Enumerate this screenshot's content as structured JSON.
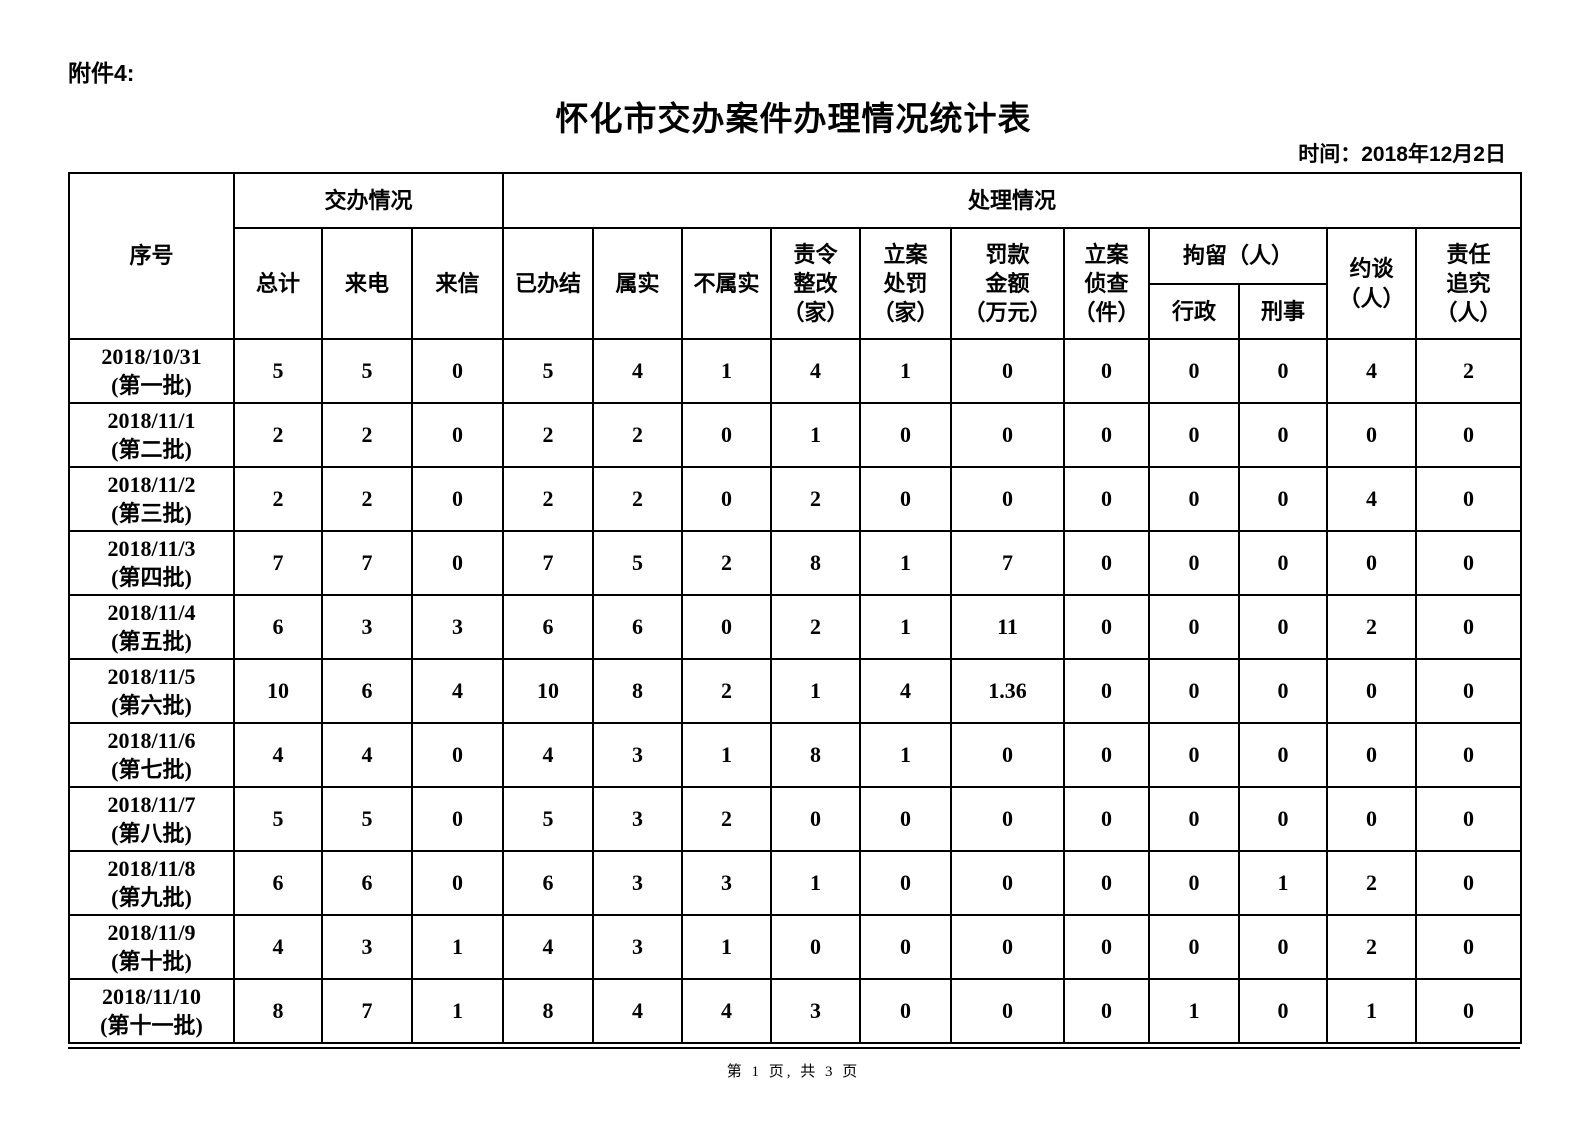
{
  "page": {
    "attachment_label": "附件4:",
    "title": "怀化市交办案件办理情况统计表",
    "date_label": "时间：2018年12月2日",
    "footer": "第 1 页, 共 3 页"
  },
  "table": {
    "header": {
      "serial": "序号",
      "group_assign": "交办情况",
      "group_handle": "处理情况",
      "col_total": "总计",
      "col_calls": "来电",
      "col_letters": "来信",
      "col_completed": "已办结",
      "col_verified": "属实",
      "col_unverified": "不属实",
      "col_rectify": "责令\n整改\n（家）",
      "col_punish": "立案\n处罚\n（家）",
      "col_fine": "罚款\n金额\n（万元）",
      "col_investigate": "立案\n侦查\n（件）",
      "col_detain": "拘留（人）",
      "col_admin": "行政",
      "col_criminal": "刑事",
      "col_interview": "约谈\n（人）",
      "col_accountability": "责任\n追究\n（人）"
    },
    "rows": [
      {
        "label": "2018/10/31\n(第一批)",
        "values": [
          "5",
          "5",
          "0",
          "5",
          "4",
          "1",
          "4",
          "1",
          "0",
          "0",
          "0",
          "0",
          "4",
          "2"
        ]
      },
      {
        "label": "2018/11/1\n(第二批)",
        "values": [
          "2",
          "2",
          "0",
          "2",
          "2",
          "0",
          "1",
          "0",
          "0",
          "0",
          "0",
          "0",
          "0",
          "0"
        ]
      },
      {
        "label": "2018/11/2\n(第三批)",
        "values": [
          "2",
          "2",
          "0",
          "2",
          "2",
          "0",
          "2",
          "0",
          "0",
          "0",
          "0",
          "0",
          "4",
          "0"
        ]
      },
      {
        "label": "2018/11/3\n(第四批)",
        "values": [
          "7",
          "7",
          "0",
          "7",
          "5",
          "2",
          "8",
          "1",
          "7",
          "0",
          "0",
          "0",
          "0",
          "0"
        ]
      },
      {
        "label": "2018/11/4\n(第五批)",
        "values": [
          "6",
          "3",
          "3",
          "6",
          "6",
          "0",
          "2",
          "1",
          "11",
          "0",
          "0",
          "0",
          "2",
          "0"
        ]
      },
      {
        "label": "2018/11/5\n(第六批)",
        "values": [
          "10",
          "6",
          "4",
          "10",
          "8",
          "2",
          "1",
          "4",
          "1.36",
          "0",
          "0",
          "0",
          "0",
          "0"
        ]
      },
      {
        "label": "2018/11/6\n(第七批)",
        "values": [
          "4",
          "4",
          "0",
          "4",
          "3",
          "1",
          "8",
          "1",
          "0",
          "0",
          "0",
          "0",
          "0",
          "0"
        ]
      },
      {
        "label": "2018/11/7\n(第八批)",
        "values": [
          "5",
          "5",
          "0",
          "5",
          "3",
          "2",
          "0",
          "0",
          "0",
          "0",
          "0",
          "0",
          "0",
          "0"
        ]
      },
      {
        "label": "2018/11/8\n(第九批)",
        "values": [
          "6",
          "6",
          "0",
          "6",
          "3",
          "3",
          "1",
          "0",
          "0",
          "0",
          "0",
          "1",
          "2",
          "0"
        ]
      },
      {
        "label": "2018/11/9\n(第十批)",
        "values": [
          "4",
          "3",
          "1",
          "4",
          "3",
          "1",
          "0",
          "0",
          "0",
          "0",
          "0",
          "0",
          "2",
          "0"
        ]
      },
      {
        "label": "2018/11/10\n(第十一批)",
        "values": [
          "8",
          "7",
          "1",
          "8",
          "4",
          "4",
          "3",
          "0",
          "0",
          "0",
          "1",
          "0",
          "1",
          "0"
        ]
      }
    ],
    "column_keys": [
      "total",
      "calls",
      "letters",
      "completed",
      "verified",
      "unverified",
      "rectify",
      "punish",
      "fine",
      "investigate",
      "admin-detention",
      "criminal-detention",
      "interview",
      "accountability"
    ]
  }
}
